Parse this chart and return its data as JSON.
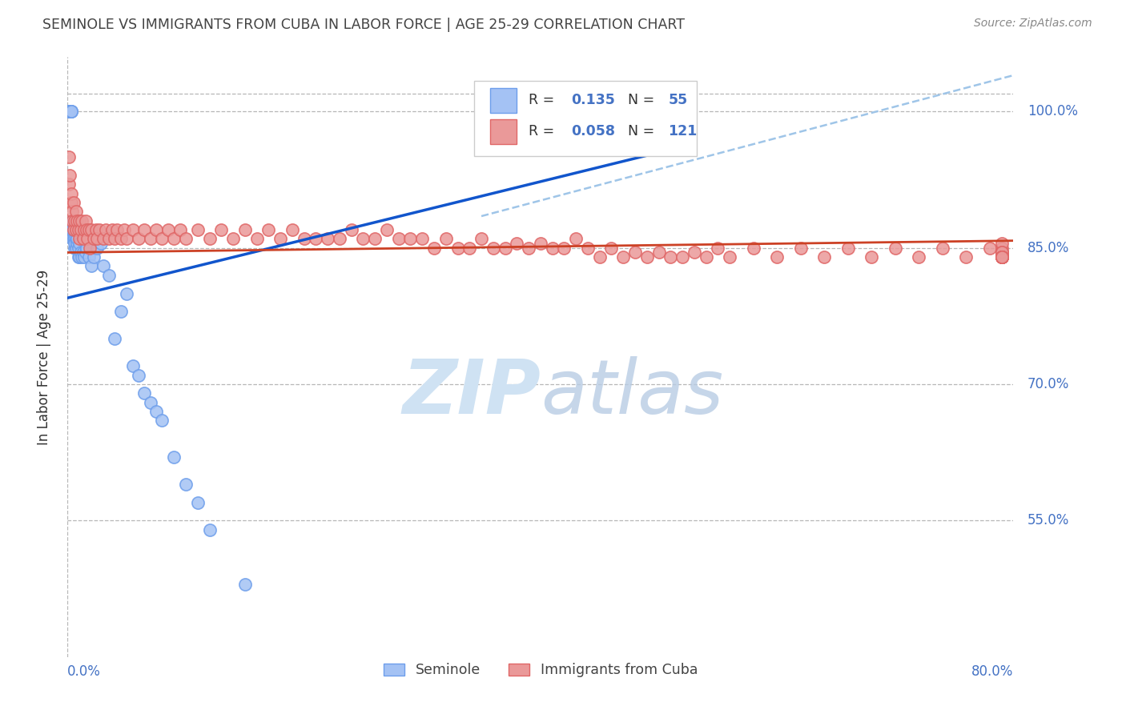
{
  "title": "SEMINOLE VS IMMIGRANTS FROM CUBA IN LABOR FORCE | AGE 25-29 CORRELATION CHART",
  "source": "Source: ZipAtlas.com",
  "ylabel": "In Labor Force | Age 25-29",
  "xmin": 0.0,
  "xmax": 0.8,
  "ymin": 0.4,
  "ymax": 1.06,
  "ytick_vals": [
    0.55,
    0.7,
    0.85,
    1.0
  ],
  "ytick_labels": [
    "55.0%",
    "70.0%",
    "85.0%",
    "100.0%"
  ],
  "seminole_color": "#a4c2f4",
  "cuba_color": "#ea9999",
  "seminole_edge": "#6d9eeb",
  "cuba_edge": "#e06666",
  "blue_line_color": "#1155cc",
  "pink_line_color": "#cc4125",
  "dashed_line_color": "#9fc5e8",
  "background_color": "#ffffff",
  "grid_color": "#b7b7b7",
  "title_color": "#434343",
  "axis_label_color": "#4472c4",
  "watermark_color": "#cfe2f3",
  "seminole_N": 55,
  "cuba_N": 121,
  "seminole_R": 0.135,
  "cuba_R": 0.058,
  "sem_x": [
    0.001,
    0.001,
    0.001,
    0.002,
    0.002,
    0.002,
    0.002,
    0.003,
    0.003,
    0.003,
    0.003,
    0.004,
    0.004,
    0.004,
    0.005,
    0.005,
    0.005,
    0.006,
    0.006,
    0.006,
    0.007,
    0.007,
    0.008,
    0.008,
    0.009,
    0.009,
    0.01,
    0.01,
    0.011,
    0.012,
    0.013,
    0.014,
    0.015,
    0.016,
    0.018,
    0.02,
    0.022,
    0.025,
    0.028,
    0.03,
    0.035,
    0.04,
    0.045,
    0.05,
    0.055,
    0.06,
    0.065,
    0.07,
    0.075,
    0.08,
    0.09,
    0.1,
    0.11,
    0.12,
    0.15
  ],
  "sem_y": [
    1.0,
    1.0,
    1.0,
    1.0,
    1.0,
    1.0,
    1.0,
    1.0,
    1.0,
    1.0,
    0.87,
    0.86,
    0.87,
    0.88,
    0.86,
    0.87,
    0.88,
    0.86,
    0.85,
    0.855,
    0.86,
    0.85,
    0.855,
    0.86,
    0.85,
    0.84,
    0.855,
    0.84,
    0.845,
    0.84,
    0.845,
    0.84,
    0.845,
    0.85,
    0.84,
    0.83,
    0.84,
    0.85,
    0.855,
    0.83,
    0.82,
    0.75,
    0.78,
    0.8,
    0.72,
    0.71,
    0.69,
    0.68,
    0.67,
    0.66,
    0.62,
    0.59,
    0.57,
    0.54,
    0.48
  ],
  "cuba_x": [
    0.001,
    0.001,
    0.002,
    0.003,
    0.003,
    0.004,
    0.004,
    0.005,
    0.005,
    0.006,
    0.007,
    0.007,
    0.008,
    0.009,
    0.01,
    0.01,
    0.011,
    0.012,
    0.013,
    0.014,
    0.015,
    0.016,
    0.017,
    0.018,
    0.019,
    0.02,
    0.022,
    0.024,
    0.025,
    0.027,
    0.03,
    0.032,
    0.035,
    0.038,
    0.04,
    0.042,
    0.045,
    0.048,
    0.05,
    0.055,
    0.06,
    0.065,
    0.07,
    0.075,
    0.08,
    0.085,
    0.09,
    0.095,
    0.1,
    0.11,
    0.12,
    0.13,
    0.14,
    0.15,
    0.16,
    0.17,
    0.18,
    0.19,
    0.2,
    0.21,
    0.22,
    0.23,
    0.24,
    0.25,
    0.26,
    0.27,
    0.28,
    0.29,
    0.3,
    0.31,
    0.32,
    0.33,
    0.34,
    0.35,
    0.36,
    0.37,
    0.38,
    0.39,
    0.4,
    0.41,
    0.42,
    0.43,
    0.44,
    0.45,
    0.46,
    0.47,
    0.48,
    0.49,
    0.5,
    0.51,
    0.52,
    0.53,
    0.54,
    0.55,
    0.56,
    0.58,
    0.6,
    0.62,
    0.64,
    0.66,
    0.68,
    0.7,
    0.72,
    0.74,
    0.76,
    0.78,
    0.79,
    0.79,
    0.79,
    0.79,
    0.79,
    0.79,
    0.79,
    0.79,
    0.79,
    0.79,
    0.79,
    0.79,
    0.79,
    0.79,
    0.79
  ],
  "cuba_y": [
    0.95,
    0.92,
    0.93,
    0.9,
    0.91,
    0.89,
    0.88,
    0.9,
    0.87,
    0.88,
    0.89,
    0.87,
    0.88,
    0.87,
    0.88,
    0.86,
    0.87,
    0.88,
    0.86,
    0.87,
    0.88,
    0.87,
    0.86,
    0.87,
    0.85,
    0.87,
    0.86,
    0.87,
    0.86,
    0.87,
    0.86,
    0.87,
    0.86,
    0.87,
    0.86,
    0.87,
    0.86,
    0.87,
    0.86,
    0.87,
    0.86,
    0.87,
    0.86,
    0.87,
    0.86,
    0.87,
    0.86,
    0.87,
    0.86,
    0.87,
    0.86,
    0.87,
    0.86,
    0.87,
    0.86,
    0.87,
    0.86,
    0.87,
    0.86,
    0.86,
    0.86,
    0.86,
    0.87,
    0.86,
    0.86,
    0.87,
    0.86,
    0.86,
    0.86,
    0.85,
    0.86,
    0.85,
    0.85,
    0.86,
    0.85,
    0.85,
    0.855,
    0.85,
    0.855,
    0.85,
    0.85,
    0.86,
    0.85,
    0.84,
    0.85,
    0.84,
    0.845,
    0.84,
    0.845,
    0.84,
    0.84,
    0.845,
    0.84,
    0.85,
    0.84,
    0.85,
    0.84,
    0.85,
    0.84,
    0.85,
    0.84,
    0.85,
    0.84,
    0.85,
    0.84,
    0.85,
    0.85,
    0.845,
    0.855,
    0.84,
    0.845,
    0.84,
    0.845,
    0.84,
    0.84,
    0.84,
    0.84,
    0.84,
    0.84,
    0.84,
    0.84
  ]
}
